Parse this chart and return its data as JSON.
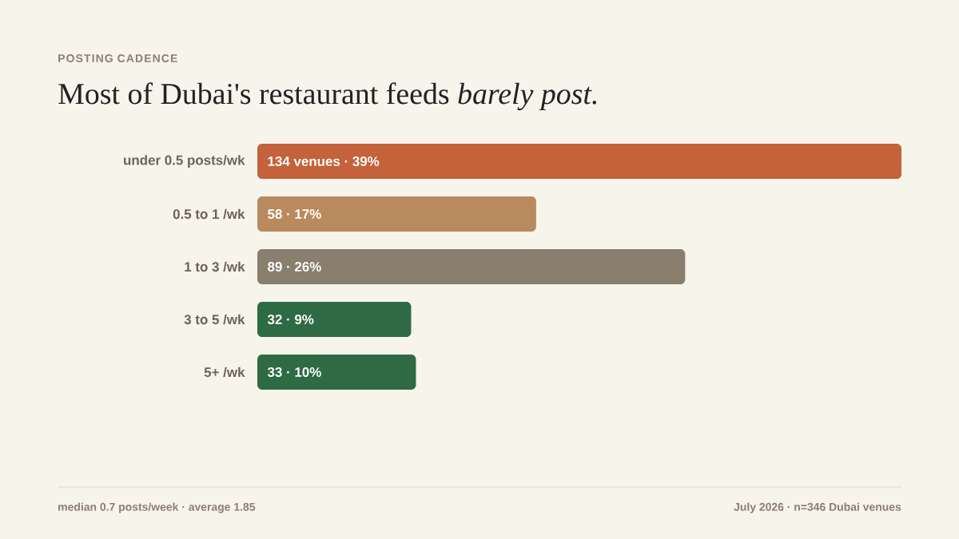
{
  "chart_data": {
    "type": "bar",
    "orientation": "horizontal",
    "subtitle": "POSTING CADENCE",
    "title": "Most of Dubai's restaurant feeds *barely post.*",
    "categories": [
      "under 0.5 posts/wk",
      "0.5 to 1 /wk",
      "1 to 3 /wk",
      "3 to 5 /wk",
      "5+ /wk"
    ],
    "values": [
      134,
      58,
      89,
      32,
      33
    ],
    "colors": [
      "#c4623b",
      "#b98a5e",
      "#8a7e6f",
      "#2e6b45",
      "#2e6b45"
    ],
    "value_labels": [
      "134 venues · 39%",
      "58 · 17%",
      "89 · 26%",
      "32 · 9%",
      "33 · 10%"
    ],
    "annotations": [
      "median 0.7 posts/week · average 1.85",
      "July 2026 · n=346 Dubai venues"
    ]
  }
}
